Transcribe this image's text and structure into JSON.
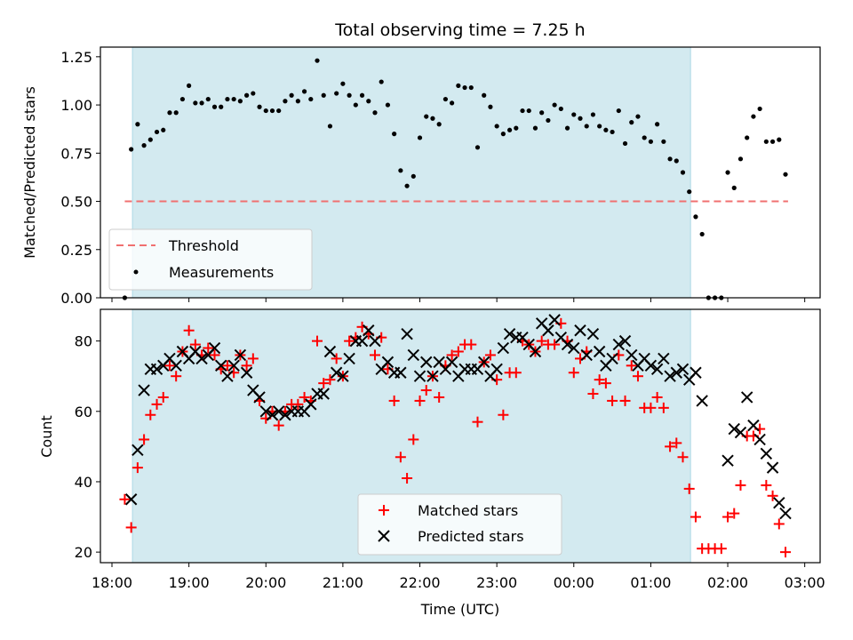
{
  "chart_data": [
    {
      "type": "scatter",
      "title": "Total observing time = 7.25 h",
      "ylabel": "Matched/Predicted stars",
      "xlabel": "",
      "xlim": [
        "18:00",
        "03:00"
      ],
      "ylim": [
        0,
        1.3
      ],
      "yticks": [
        "0.00",
        "0.25",
        "0.50",
        "0.75",
        "1.00",
        "1.25"
      ],
      "shaded_interval": [
        "18:16",
        "01:31"
      ],
      "shaded_color": "#d3eaf0",
      "legend_location": "lower-left",
      "threshold": {
        "name": "Threshold",
        "value": 0.5,
        "color": "#f07070",
        "style": "dashed",
        "x_range": [
          "18:10",
          "02:47"
        ]
      },
      "series": [
        {
          "name": "Measurements",
          "color": "#000000",
          "marker": "dot",
          "x": [
            "18:10",
            "18:15",
            "18:20",
            "18:25",
            "18:30",
            "18:35",
            "18:40",
            "18:45",
            "18:50",
            "18:55",
            "19:00",
            "19:05",
            "19:10",
            "19:15",
            "19:20",
            "19:25",
            "19:30",
            "19:35",
            "19:40",
            "19:45",
            "19:50",
            "19:55",
            "20:00",
            "20:05",
            "20:10",
            "20:15",
            "20:20",
            "20:25",
            "20:30",
            "20:35",
            "20:40",
            "20:45",
            "20:50",
            "20:55",
            "21:00",
            "21:05",
            "21:10",
            "21:15",
            "21:20",
            "21:25",
            "21:30",
            "21:35",
            "21:40",
            "21:45",
            "21:50",
            "21:55",
            "22:00",
            "22:05",
            "22:10",
            "22:15",
            "22:20",
            "22:25",
            "22:30",
            "22:35",
            "22:40",
            "22:45",
            "22:50",
            "22:55",
            "23:00",
            "23:05",
            "23:10",
            "23:15",
            "23:20",
            "23:25",
            "23:30",
            "23:35",
            "23:40",
            "23:45",
            "23:50",
            "23:55",
            "00:00",
            "00:05",
            "00:10",
            "00:15",
            "00:20",
            "00:25",
            "00:30",
            "00:35",
            "00:40",
            "00:45",
            "00:50",
            "00:55",
            "01:00",
            "01:05",
            "01:10",
            "01:15",
            "01:20",
            "01:25",
            "01:30",
            "01:35",
            "01:40",
            "01:45",
            "01:50",
            "01:55",
            "02:00",
            "02:05",
            "02:10",
            "02:15",
            "02:20",
            "02:25",
            "02:30",
            "02:35",
            "02:40",
            "02:45"
          ],
          "y": [
            0.0,
            0.77,
            0.9,
            0.79,
            0.82,
            0.86,
            0.87,
            0.96,
            0.96,
            1.03,
            1.1,
            1.01,
            1.01,
            1.03,
            0.99,
            0.99,
            1.03,
            1.03,
            1.02,
            1.05,
            1.06,
            0.99,
            0.97,
            0.97,
            0.97,
            1.02,
            1.05,
            1.02,
            1.07,
            1.03,
            1.23,
            1.05,
            0.89,
            1.06,
            1.11,
            1.05,
            1.0,
            1.05,
            1.02,
            0.96,
            1.12,
            1.0,
            0.85,
            0.66,
            0.58,
            0.63,
            0.83,
            0.94,
            0.93,
            0.9,
            1.03,
            1.01,
            1.1,
            1.09,
            1.09,
            0.78,
            1.05,
            0.99,
            0.89,
            0.85,
            0.87,
            0.88,
            0.97,
            0.97,
            0.88,
            0.96,
            0.92,
            1.0,
            0.98,
            0.88,
            0.95,
            0.93,
            0.89,
            0.95,
            0.89,
            0.87,
            0.86,
            0.97,
            0.8,
            0.91,
            0.94,
            0.83,
            0.81,
            0.9,
            0.81,
            0.72,
            0.71,
            0.65,
            0.55,
            0.42,
            0.33,
            0.0,
            0.0,
            0.0,
            0.65,
            0.57,
            0.72,
            0.83,
            0.94,
            0.98,
            0.81,
            0.81,
            0.82,
            0.64
          ]
        }
      ]
    },
    {
      "type": "scatter",
      "ylabel": "Count",
      "xlabel": "Time (UTC)",
      "xlim": [
        "18:00",
        "03:00"
      ],
      "ylim": [
        17,
        89
      ],
      "yticks": [
        "20",
        "40",
        "60",
        "80"
      ],
      "xticks": [
        "18:00",
        "19:00",
        "20:00",
        "21:00",
        "22:00",
        "23:00",
        "00:00",
        "01:00",
        "02:00",
        "03:00"
      ],
      "shaded_interval": [
        "18:16",
        "01:31"
      ],
      "legend_location": "lower-center",
      "series": [
        {
          "name": "Matched stars",
          "color": "#ff0000",
          "marker": "plus",
          "x": [
            "18:10",
            "18:15",
            "18:20",
            "18:25",
            "18:30",
            "18:35",
            "18:40",
            "18:45",
            "18:50",
            "18:55",
            "19:00",
            "19:05",
            "19:10",
            "19:15",
            "19:20",
            "19:25",
            "19:30",
            "19:35",
            "19:40",
            "19:45",
            "19:50",
            "19:55",
            "20:00",
            "20:05",
            "20:10",
            "20:15",
            "20:20",
            "20:25",
            "20:30",
            "20:35",
            "20:40",
            "20:45",
            "20:50",
            "20:55",
            "21:00",
            "21:05",
            "21:10",
            "21:15",
            "21:20",
            "21:25",
            "21:30",
            "21:35",
            "21:40",
            "21:45",
            "21:50",
            "21:55",
            "22:00",
            "22:05",
            "22:10",
            "22:15",
            "22:20",
            "22:25",
            "22:30",
            "22:35",
            "22:40",
            "22:45",
            "22:50",
            "22:55",
            "23:00",
            "23:05",
            "23:10",
            "23:15",
            "23:20",
            "23:25",
            "23:30",
            "23:35",
            "23:40",
            "23:45",
            "23:50",
            "23:55",
            "00:00",
            "00:05",
            "00:10",
            "00:15",
            "00:20",
            "00:25",
            "00:30",
            "00:35",
            "00:40",
            "00:45",
            "00:50",
            "00:55",
            "01:00",
            "01:05",
            "01:10",
            "01:15",
            "01:20",
            "01:25",
            "01:30",
            "01:35",
            "01:40",
            "01:45",
            "01:50",
            "01:55",
            "02:00",
            "02:05",
            "02:10",
            "02:15",
            "02:20",
            "02:25",
            "02:30",
            "02:35",
            "02:40",
            "02:45"
          ],
          "y": [
            35,
            27,
            44,
            52,
            59,
            62,
            64,
            73,
            70,
            77,
            83,
            79,
            76,
            78,
            76,
            72,
            73,
            71,
            76,
            73,
            75,
            63,
            58,
            60,
            56,
            60,
            62,
            62,
            64,
            63,
            80,
            68,
            69,
            75,
            70,
            80,
            81,
            84,
            82,
            76,
            81,
            72,
            63,
            47,
            41,
            52,
            63,
            66,
            70,
            64,
            73,
            76,
            77,
            79,
            79,
            57,
            74,
            76,
            69,
            59,
            71,
            71,
            80,
            79,
            77,
            80,
            79,
            79,
            85,
            80,
            71,
            75,
            77,
            65,
            69,
            68,
            63,
            76,
            63,
            73,
            70,
            61,
            61,
            64,
            61,
            50,
            51,
            47,
            38,
            30,
            21,
            21,
            21,
            21,
            30,
            31,
            39,
            53,
            53,
            55,
            39,
            36,
            28,
            20
          ]
        },
        {
          "name": "Predicted stars",
          "color": "#000000",
          "marker": "x",
          "x": [
            "18:15",
            "18:20",
            "18:25",
            "18:30",
            "18:35",
            "18:40",
            "18:45",
            "18:50",
            "18:55",
            "19:00",
            "19:05",
            "19:10",
            "19:15",
            "19:20",
            "19:25",
            "19:30",
            "19:35",
            "19:40",
            "19:45",
            "19:50",
            "19:55",
            "20:00",
            "20:05",
            "20:10",
            "20:15",
            "20:20",
            "20:25",
            "20:30",
            "20:35",
            "20:40",
            "20:45",
            "20:50",
            "20:55",
            "21:00",
            "21:05",
            "21:10",
            "21:15",
            "21:20",
            "21:25",
            "21:30",
            "21:35",
            "21:40",
            "21:45",
            "21:50",
            "21:55",
            "22:00",
            "22:05",
            "22:10",
            "22:15",
            "22:20",
            "22:25",
            "22:30",
            "22:35",
            "22:40",
            "22:45",
            "22:50",
            "22:55",
            "23:00",
            "23:05",
            "23:10",
            "23:15",
            "23:20",
            "23:25",
            "23:30",
            "23:35",
            "23:40",
            "23:45",
            "23:50",
            "23:55",
            "00:00",
            "00:05",
            "00:10",
            "00:15",
            "00:20",
            "00:25",
            "00:30",
            "00:35",
            "00:40",
            "00:45",
            "00:50",
            "00:55",
            "01:00",
            "01:05",
            "01:10",
            "01:15",
            "01:20",
            "01:25",
            "01:30",
            "01:35",
            "01:40",
            "02:00",
            "02:05",
            "02:10",
            "02:15",
            "02:20",
            "02:25",
            "02:30",
            "02:35",
            "02:40",
            "02:45"
          ],
          "y": [
            35,
            49,
            66,
            72,
            72,
            73,
            75,
            73,
            77,
            75,
            77,
            75,
            76,
            78,
            73,
            70,
            73,
            76,
            71,
            66,
            64,
            60,
            59,
            60,
            59,
            60,
            60,
            60,
            62,
            65,
            65,
            77,
            71,
            70,
            75,
            80,
            80,
            83,
            80,
            72,
            74,
            71,
            71,
            82,
            76,
            70,
            74,
            70,
            74,
            72,
            74,
            70,
            72,
            72,
            72,
            74,
            70,
            72,
            78,
            82,
            81,
            81,
            79,
            77,
            85,
            83,
            86,
            81,
            79,
            78,
            83,
            76,
            82,
            77,
            73,
            75,
            79,
            80,
            76,
            73,
            75,
            73,
            72,
            75,
            70,
            71,
            72,
            69,
            71,
            63,
            46,
            55,
            54,
            64,
            56,
            52,
            48,
            44,
            34,
            31
          ]
        }
      ]
    }
  ]
}
